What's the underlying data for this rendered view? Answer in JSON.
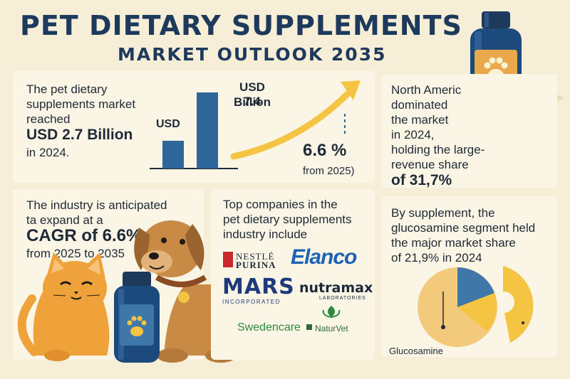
{
  "header": {
    "title": "PET DIETARY SUPPLEMENTS",
    "subtitle": "MARKET OUTLOOK 2035"
  },
  "market_size": {
    "line1": "The pet dietary",
    "line2": "supplements market",
    "line3": "reached",
    "value": "USD 2.7 Billion",
    "year": "in 2024."
  },
  "growth_chart": {
    "bar1_label": "USD",
    "bar2_label_line1": "USD 7.4",
    "bar2_label_line2": "Billion",
    "bar_values": [
      2.7,
      7.4
    ],
    "rate": "6.6 %",
    "rate_note": "from 2025)"
  },
  "region": {
    "line1": "North Americ",
    "line2": "dominated",
    "line3": "the market",
    "line4": "in 2024,",
    "line5": "holding the large-",
    "line6": "revenue share",
    "share": "of 31,7%"
  },
  "cagr": {
    "line1": "The industry is anticipated",
    "line2": "ta expand at a",
    "value": "CAGR of 6.6%",
    "line4": "from 2025 to 2035"
  },
  "companies": {
    "line1": "Top companies in the",
    "line2": "pet dietary supplements",
    "line3": "industry include",
    "nestle_top": "NESTLÉ",
    "nestle_bottom": "PURINA",
    "elanco": "Elanco",
    "mars": "MARS",
    "mars_sub": "INCORPORATED",
    "nutramax": "nutramax",
    "nutramax_sub": "LABORATORIES",
    "swedencare": "Swedencare",
    "naturvet": "NaturVet"
  },
  "supplement": {
    "line1": "By supplement, the",
    "line2": "glucosamine segment held",
    "line3": "the major market share",
    "share": "of 21,9% in 2024",
    "pie_label": "Glucosamine"
  },
  "colors": {
    "navy": "#1d3a5c",
    "blue": "#3f78a8",
    "yellow": "#f4c442",
    "orange": "#f0a23a",
    "brown": "#c98a45",
    "background": "#f7eed8"
  }
}
